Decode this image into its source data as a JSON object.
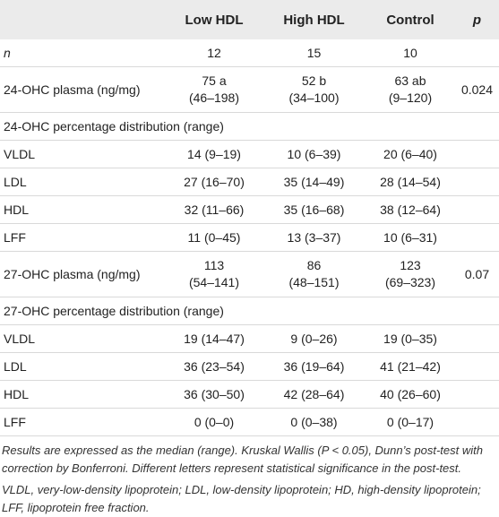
{
  "header": {
    "col0": "",
    "col1": "Low HDL",
    "col2": "High HDL",
    "col3": "Control",
    "col4": "p"
  },
  "rows": {
    "n": {
      "label": "n",
      "low": "12",
      "high": "15",
      "ctrl": "10",
      "p": ""
    },
    "ohc24": {
      "label": "24-OHC plasma (ng/mg)",
      "low1": "75 a",
      "low2": "(46–198)",
      "high1": "52 b",
      "high2": "(34–100)",
      "ctrl1": "63 ab",
      "ctrl2": "(9–120)",
      "p": "0.024"
    },
    "dist24": {
      "label": "24-OHC percentage distribution (range)"
    },
    "vldl24": {
      "label": "VLDL",
      "low": "14 (9–19)",
      "high": "10 (6–39)",
      "ctrl": "20 (6–40)"
    },
    "ldl24": {
      "label": "LDL",
      "low": "27 (16–70)",
      "high": "35 (14–49)",
      "ctrl": "28 (14–54)"
    },
    "hdl24": {
      "label": "HDL",
      "low": "32 (11–66)",
      "high": "35 (16–68)",
      "ctrl": "38 (12–64)"
    },
    "lff24": {
      "label": "LFF",
      "low": "11 (0–45)",
      "high": "13 (3–37)",
      "ctrl": "10 (6–31)"
    },
    "ohc27": {
      "label": "27-OHC plasma (ng/mg)",
      "low1": "113",
      "low2": "(54–141)",
      "high1": "86",
      "high2": "(48–151)",
      "ctrl1": "123",
      "ctrl2": "(69–323)",
      "p": "0.07"
    },
    "dist27": {
      "label": "27-OHC percentage distribution (range)"
    },
    "vldl27": {
      "label": "VLDL",
      "low": "19 (14–47)",
      "high": "9 (0–26)",
      "ctrl": "19 (0–35)"
    },
    "ldl27": {
      "label": "LDL",
      "low": "36 (23–54)",
      "high": "36 (19–64)",
      "ctrl": "41 (21–42)"
    },
    "hdl27": {
      "label": "HDL",
      "low": "36 (30–50)",
      "high": "42 (28–64)",
      "ctrl": "40 (26–60)"
    },
    "lff27": {
      "label": "LFF",
      "low": "0 (0–0)",
      "high": "0 (0–38)",
      "ctrl": "0 (0–17)"
    }
  },
  "footer": {
    "note1": "Results are expressed as the median (range). Kruskal Wallis (P < 0.05), Dunn’s post-test with correction by Bonferroni. Different letters represent statistical significance in the post-test.",
    "note2": "VLDL, very-low-density lipoprotein; LDL, low-density lipoprotein; HD, high-density lipoprotein; LFF, lipoprotein free fraction."
  }
}
